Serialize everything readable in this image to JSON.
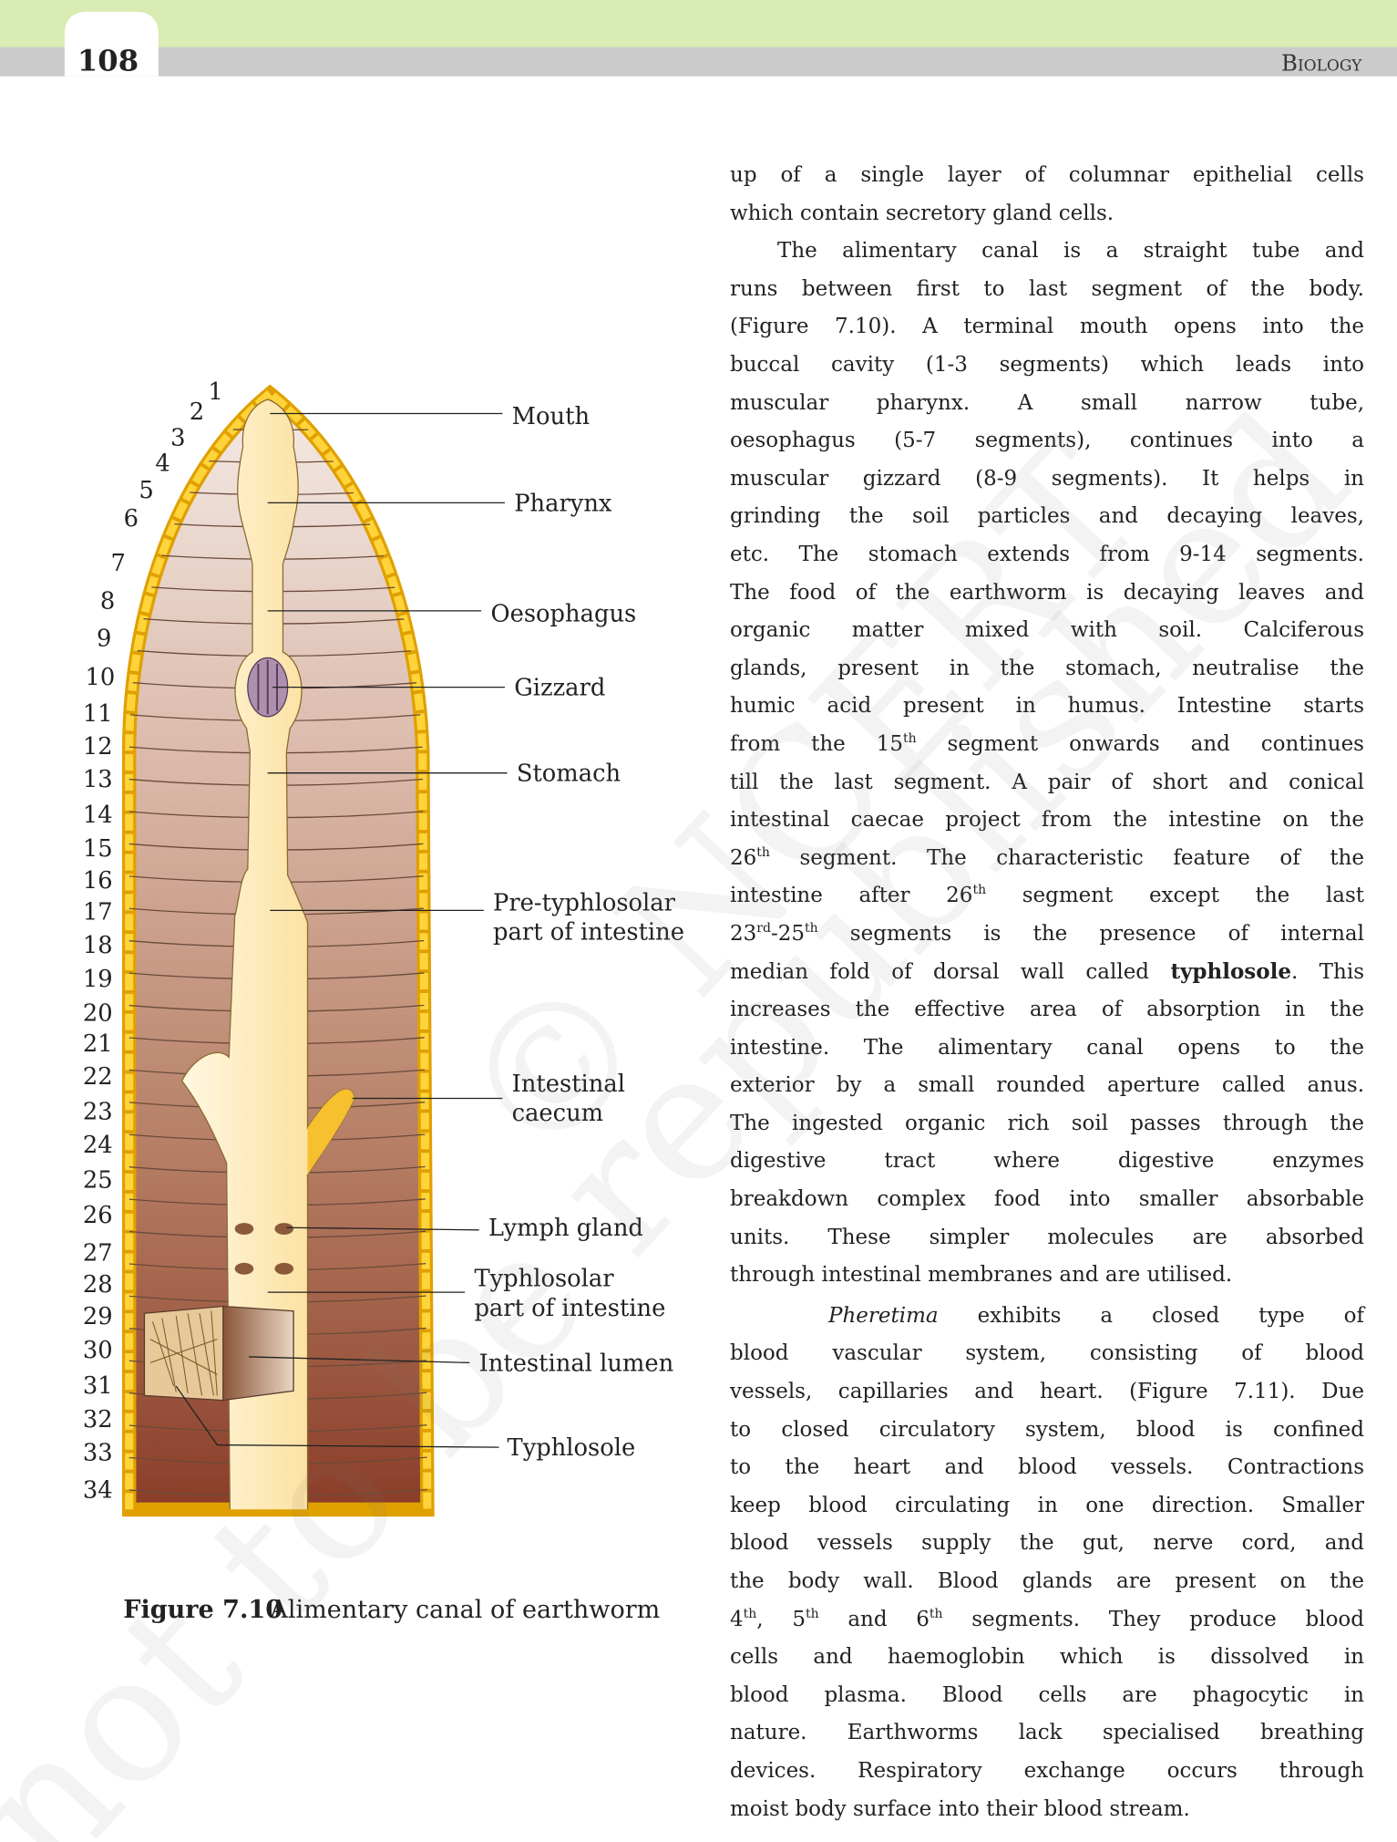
{
  "header": {
    "page_number": "108",
    "subject": "Biology"
  },
  "figure": {
    "segment_numbers": [
      "1",
      "2",
      "3",
      "4",
      "5",
      "6",
      "7",
      "8",
      "9",
      "10",
      "11",
      "12",
      "13",
      "14",
      "15",
      "16",
      "17",
      "18",
      "19",
      "20",
      "21",
      "22",
      "23",
      "24",
      "25",
      "26",
      "27",
      "28",
      "29",
      "30",
      "31",
      "32",
      "33",
      "34"
    ],
    "labels": [
      [
        "Mouth"
      ],
      [
        "Pharynx"
      ],
      [
        "Oesophagus"
      ],
      [
        "Gizzard"
      ],
      [
        "Stomach"
      ],
      [
        "Pre-typhlosolar",
        "part of intestine"
      ],
      [
        "Intestinal",
        "caecum"
      ],
      [
        "Lymph gland"
      ],
      [
        "Typhlosolar",
        "part of intestine"
      ],
      [
        "Intestinal lumen"
      ],
      [
        "Typhlosole"
      ]
    ],
    "caption": {
      "number": "Figure 7.10",
      "text": "Alimentary canal of earthworm"
    }
  },
  "body": {
    "paragraphs": [
      {
        "lines": [
          [
            "up of a single layer of columnar epithelial cells"
          ],
          [
            "which contain secretory gland cells."
          ]
        ]
      },
      {
        "lines": [
          [
            "The alimentary canal is a straight tube and"
          ],
          [
            "runs between first to last segment of the body."
          ],
          [
            "(Figure 7.10). A terminal mouth opens into the"
          ],
          [
            "buccal cavity (1-3 segments) which leads into"
          ],
          [
            "muscular pharynx. A small narrow tube,"
          ],
          [
            "oesophagus (5-7 segments), continues into a"
          ],
          [
            "muscular gizzard (8-9 segments). It helps in"
          ],
          [
            "grinding the soil particles and decaying leaves,"
          ],
          [
            "etc. The stomach extends from 9-14 segments."
          ],
          [
            "The food of the earthworm is decaying leaves and"
          ],
          [
            "organic matter mixed with soil. Calciferous"
          ],
          [
            "glands, present in the stomach, neutralise the"
          ],
          [
            "humic acid present in humus. Intestine starts"
          ],
          [
            "from the 15",
            {
              "sup": "th"
            },
            " segment onwards and continues"
          ],
          [
            "till the last segment. A pair of short and conical"
          ],
          [
            "intestinal caecae project from the intestine on the"
          ],
          [
            "26",
            {
              "sup": "th"
            },
            " segment. The characteristic feature of the"
          ],
          [
            "intestine after 26",
            {
              "sup": "th"
            },
            " segment except the last"
          ],
          [
            "23",
            {
              "sup": "rd"
            },
            "-25",
            {
              "sup": "th"
            },
            " segments is the presence of internal"
          ],
          [
            "median fold of dorsal wall called ",
            {
              "bold": "typhlosole"
            },
            ". This"
          ],
          [
            "increases the effective area of absorption in the"
          ],
          [
            "intestine. The alimentary canal opens to the"
          ],
          [
            "exterior by a small rounded aperture called anus."
          ],
          [
            "The ingested organic rich soil passes through the"
          ],
          [
            "digestive tract where digestive enzymes"
          ],
          [
            "breakdown complex food into smaller absorbable"
          ],
          [
            "units. These simpler molecules are absorbed"
          ],
          [
            "through intestinal membranes and are utilised."
          ]
        ]
      },
      {
        "lines": [
          [
            {
              "italic": "Pheretima"
            },
            "  exhibits a closed type of"
          ],
          [
            "blood vascular system, consisting of blood"
          ],
          [
            "vessels, capillaries and heart. (Figure 7.11). Due"
          ],
          [
            "to closed circulatory system, blood is confined"
          ],
          [
            "to the heart and blood vessels. Contractions"
          ],
          [
            "keep blood circulating in one direction. Smaller"
          ],
          [
            "blood vessels supply the gut, nerve cord, and"
          ],
          [
            "the body wall. Blood glands are present on the"
          ],
          [
            "4",
            {
              "sup": "th"
            },
            ", 5",
            {
              "sup": "th"
            },
            " and 6",
            {
              "sup": "th"
            },
            " segments. They produce blood"
          ],
          [
            "cells and haemoglobin which is dissolved in"
          ],
          [
            "blood plasma. Blood cells are phagocytic in"
          ],
          [
            "nature. Earthworms lack specialised breathing"
          ],
          [
            "devices. Respiratory exchange occurs through"
          ],
          [
            "moist body surface into their blood stream."
          ]
        ]
      }
    ]
  },
  "watermark": [
    "© NCERT",
    "not to be republished"
  ]
}
